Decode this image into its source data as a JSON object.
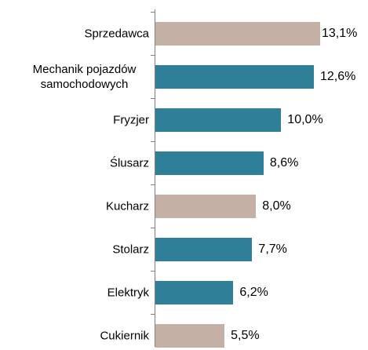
{
  "chart_data": {
    "type": "bar",
    "categories": [
      "Sprzedawca",
      "Mechanik pojazdów samochodowych",
      "Fryzjer",
      "Ślusarz",
      "Kucharz",
      "Stolarz",
      "Elektryk",
      "Cukiernik"
    ],
    "values": [
      13.1,
      12.6,
      10.0,
      8.6,
      8.0,
      7.7,
      6.2,
      5.5
    ],
    "value_labels": [
      "13,1%",
      "12,6%",
      "10,0%",
      "8,6%",
      "8,0%",
      "7,7%",
      "6,2%",
      "5,5%"
    ],
    "colors": [
      "#c4b0a5",
      "#2e7f97",
      "#2e7f97",
      "#2e7f97",
      "#c4b0a5",
      "#2e7f97",
      "#2e7f97",
      "#c4b0a5"
    ]
  }
}
